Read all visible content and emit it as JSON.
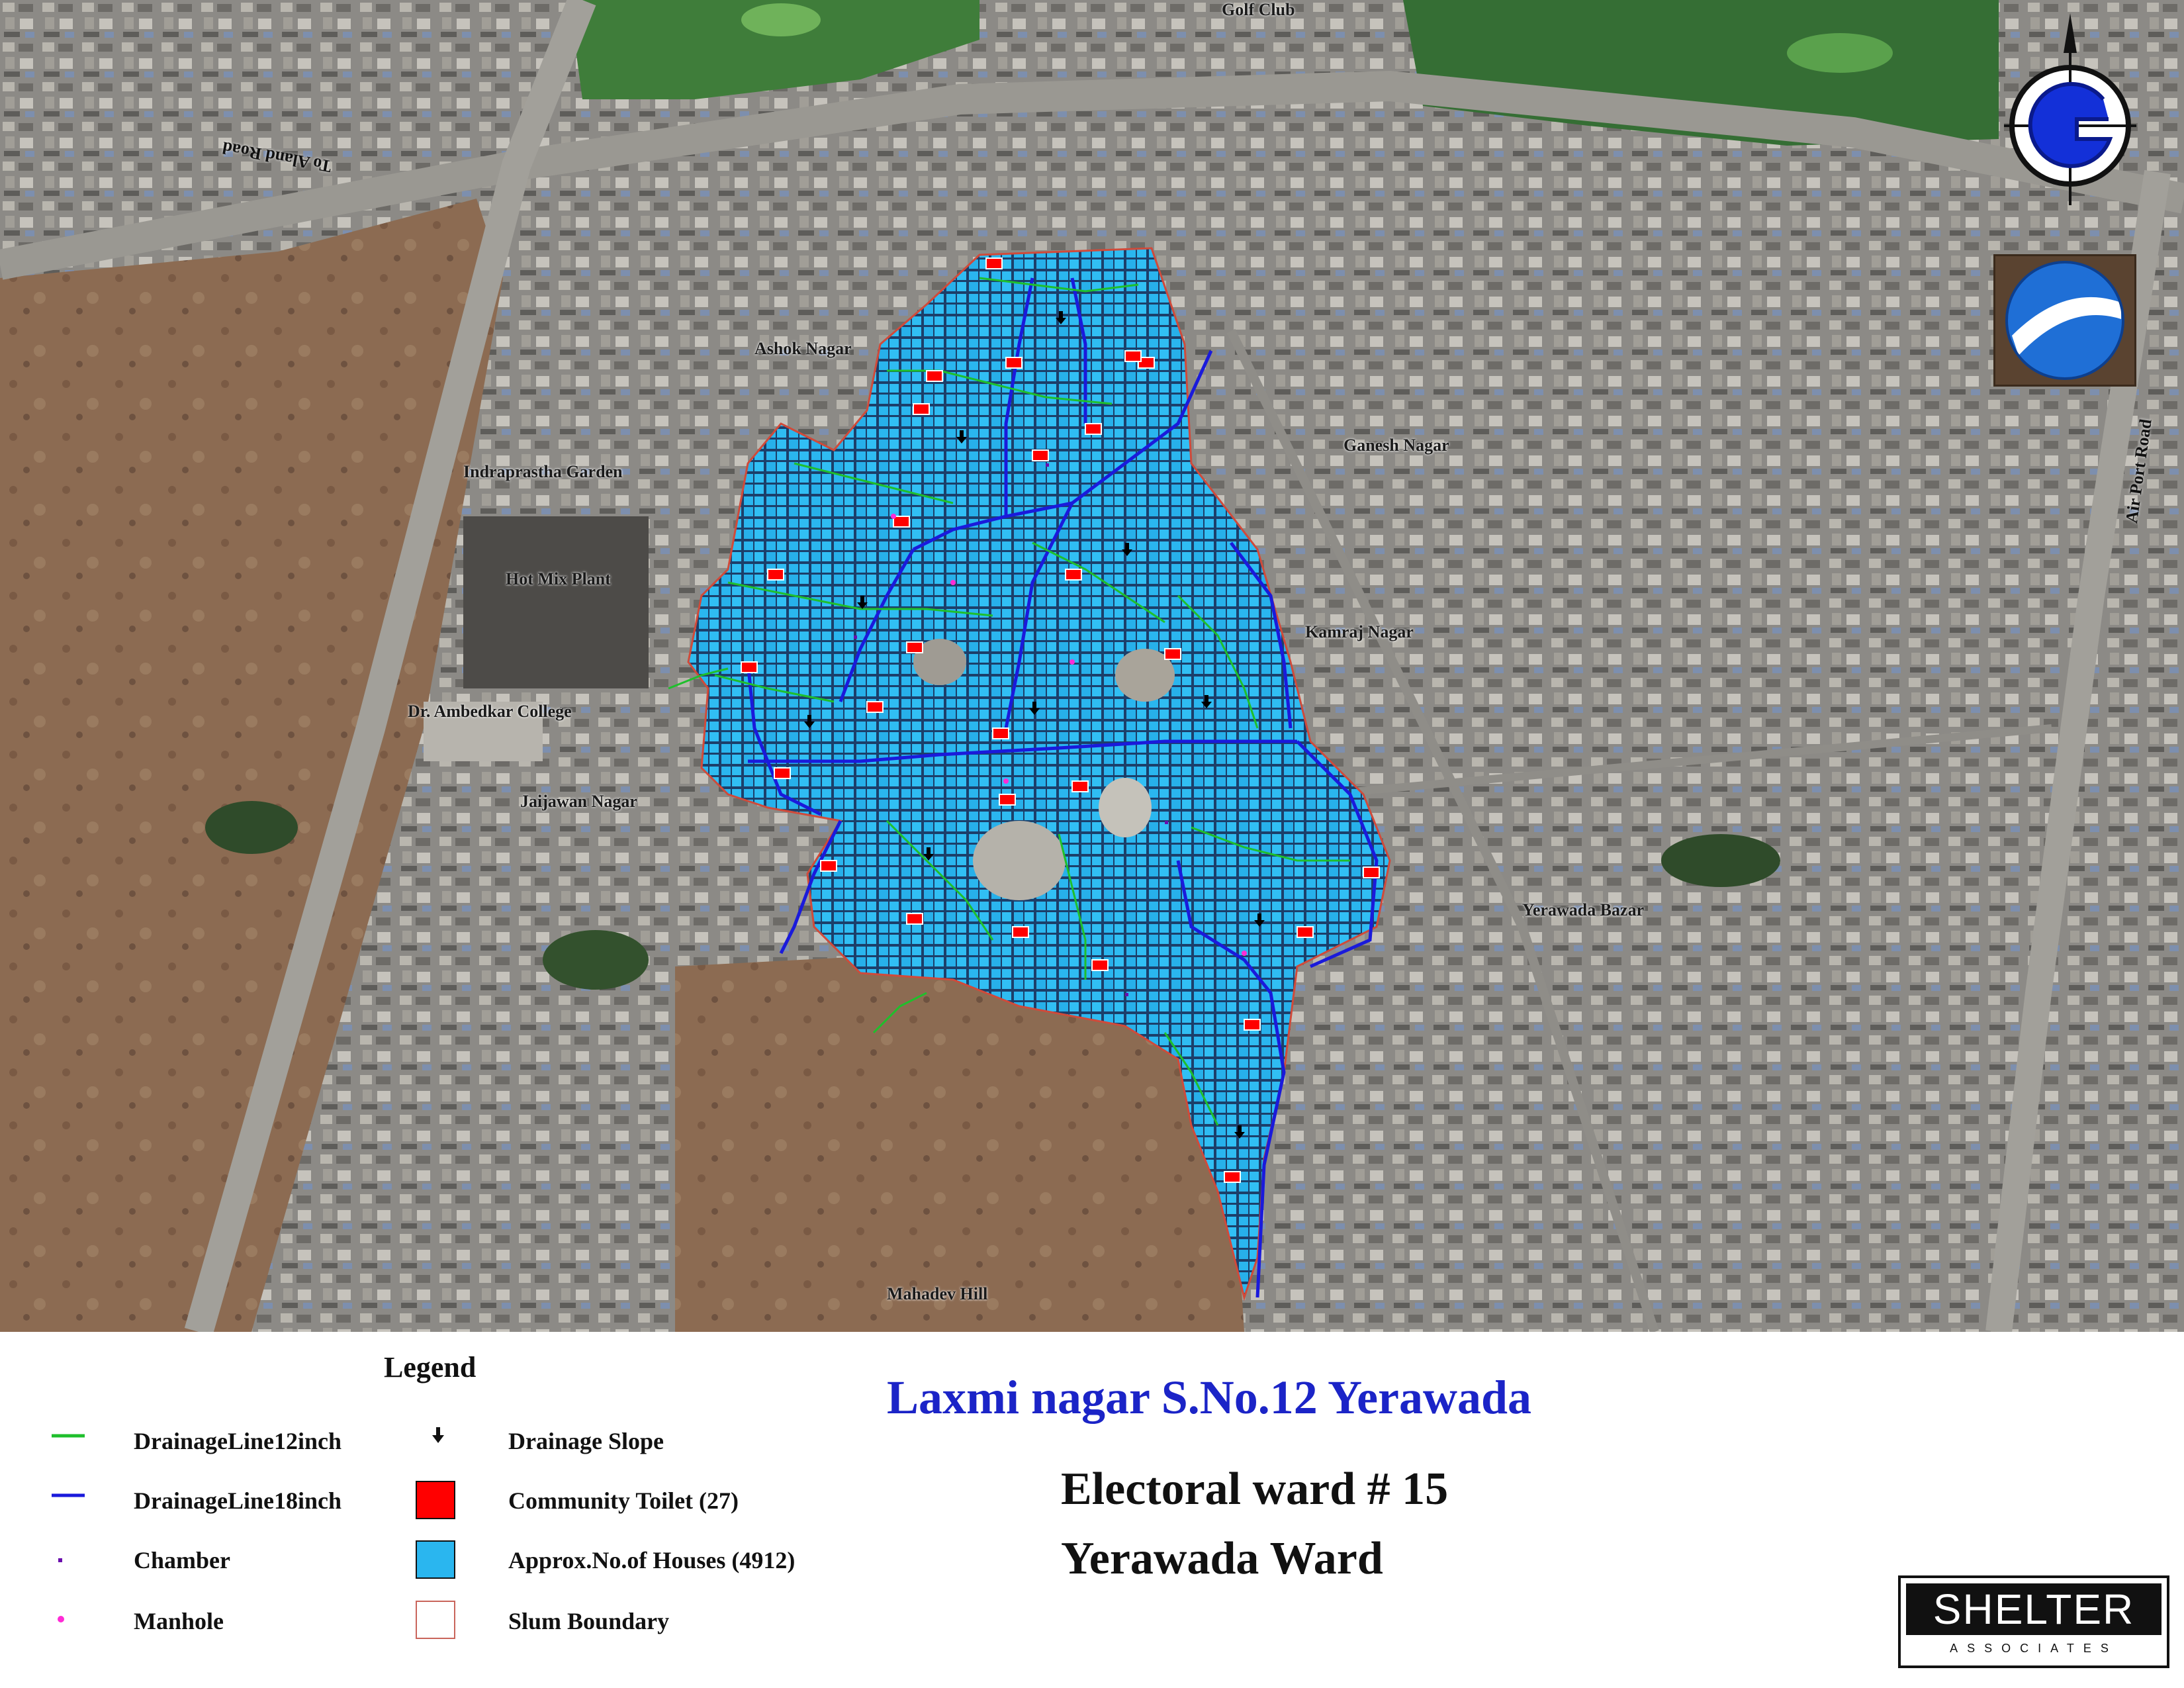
{
  "map": {
    "place_labels": {
      "golf_club": "Golf Club",
      "to_alandi_road": "To Aland Road",
      "ashok_nagar": "Ashok Nagar",
      "indraprastha_garden": "Indraprastha Garden",
      "hot_mix_plant": "Hot Mix Plant",
      "dr_ambedkar_college": "Dr. Ambedkar College",
      "jaijawan_nagar": "Jaijawan Nagar",
      "ganesh_nagar": "Ganesh Nagar",
      "kamraj_nagar": "Kamraj Nagar",
      "yerawada_bazar": "Yerawada Bazar",
      "airport_road": "Air Port Road",
      "mahadev_hill": "Mahadev Hill"
    },
    "icons": {
      "compass": "compass-rose-icon",
      "earth": "google-earth-icon"
    },
    "colors": {
      "houses": "#2ab6ef",
      "drainage12": "#1fbf2c",
      "drainage18": "#1a1adb",
      "toilet": "#ff0000",
      "chamber": "#6a0dad",
      "manhole": "#ff2bd6"
    }
  },
  "legend": {
    "title": "Legend",
    "items": [
      {
        "label": "DrainageLine12inch",
        "symbol": "green-line"
      },
      {
        "label": "DrainageLine18inch",
        "symbol": "blue-line"
      },
      {
        "label": "Chamber",
        "symbol": "purple-dot"
      },
      {
        "label": "Manhole",
        "symbol": "magenta-dot"
      },
      {
        "label": "Drainage Slope",
        "symbol": "arrow-down"
      },
      {
        "label": "Community Toilet (27)",
        "symbol": "red-square"
      },
      {
        "label": "Approx.No.of Houses (4912)",
        "symbol": "cyan-square"
      },
      {
        "label": "Slum Boundary",
        "symbol": "outline-square"
      }
    ]
  },
  "title": {
    "main": "Laxmi nagar S.No.12 Yerawada",
    "electoral_ward": "Electoral ward # 15",
    "ward_name": "Yerawada Ward"
  },
  "logo": {
    "name": "SHELTER",
    "sub": "ASSOCIATES"
  }
}
